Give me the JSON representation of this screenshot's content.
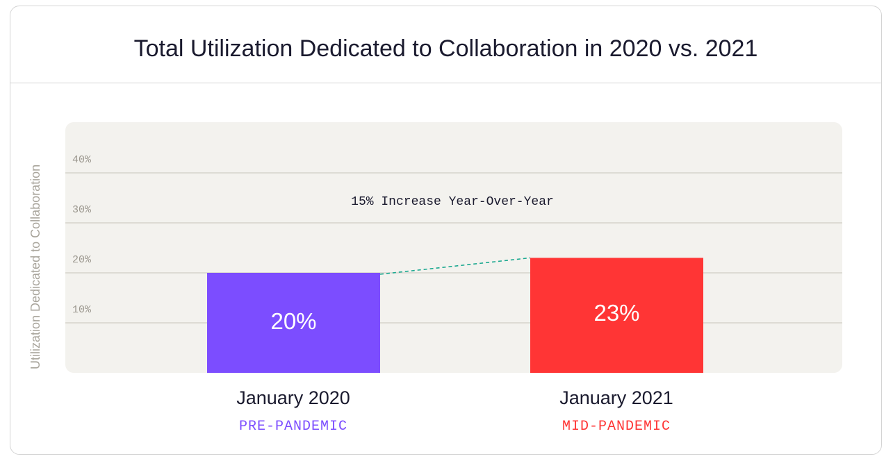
{
  "title": "Total Utilization Dedicated to Collaboration in 2020 vs. 2021",
  "chart_data": {
    "type": "bar",
    "ylabel": "Utilization Dedicated to Collaboration",
    "categories": [
      "January 2020",
      "January 2021"
    ],
    "subcategories": [
      "PRE-PANDEMIC",
      "MID-PANDEMIC"
    ],
    "values": [
      20,
      23
    ],
    "value_labels": [
      "20%",
      "23%"
    ],
    "colors": [
      "#7c4dff",
      "#ff3535"
    ],
    "yticks": [
      10,
      20,
      30,
      40
    ],
    "ytick_labels": [
      "10%",
      "20%",
      "30%",
      "40%"
    ],
    "ylim": [
      0,
      40
    ],
    "grid": true,
    "annotation": "15% Increase Year-Over-Year",
    "trend_line_color": "#1aa88f",
    "plot_background": "#f3f2ee",
    "gridline_color": "#d6d3cc",
    "tick_color": "#9a968d"
  }
}
